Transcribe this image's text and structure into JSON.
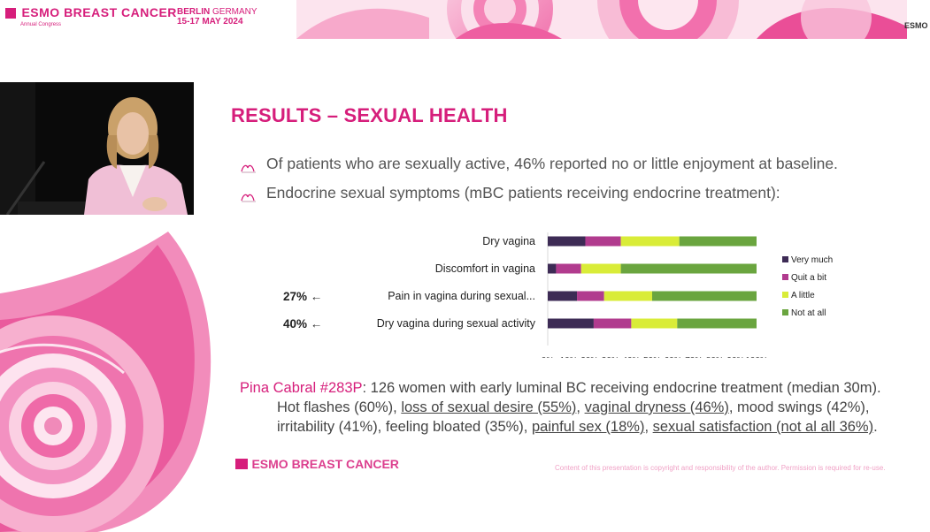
{
  "header": {
    "logo_year": "2024",
    "logo_title": "ESMO BREAST CANCER",
    "logo_subtitle": "Annual Congress",
    "city": "BERLIN",
    "country": "GERMANY",
    "dates": "15-17 MAY 2024",
    "corner_logo": "ESMO"
  },
  "slide": {
    "title": "RESULTS – SEXUAL HEALTH",
    "bullets": [
      "Of patients who are sexually active, 46% reported no or little enjoyment at baseline.",
      "Endocrine sexual symptoms (mBC patients receiving endocrine treatment):"
    ],
    "bullet_icon": "ribbon-logo-icon",
    "pina": {
      "ref": "Pina Cabral #283P",
      "line1": ": 126 women with early luminal BC receiving endocrine treatment (median 30m).",
      "l2a": "Hot flashes (60%), ",
      "l2b": "loss of sexual desire (55%)",
      "l2c": ", ",
      "l2d": "vaginal dryness (46%)",
      "l2e": ", mood swings (42%),",
      "l3a": "irritability (41%), feeling bloated (35%), ",
      "l3b": "painful sex (18%)",
      "l3c": ", ",
      "l3d": "sexual satisfaction (not al all 36%)",
      "l3e": "."
    },
    "footer_logo_year": "2024",
    "footer_logo_title": "ESMO BREAST CANCER",
    "copyright": "Content of this presentation is copyright and responsibility of the author. Permission is required for re-use."
  },
  "colors": {
    "accent": "#d61e7b",
    "very_much": "#3d2b55",
    "quite_a_bit": "#b13b8e",
    "a_little": "#d9ec38",
    "not_at_all": "#6aa53f"
  },
  "chart_data": {
    "type": "bar",
    "orientation": "horizontal",
    "stacked": true,
    "categories": [
      "Dry vagina",
      "Discomfort in vagina",
      "Pain in vagina during sexual...",
      "Dry vagina during sexual activity"
    ],
    "annotations": [
      "",
      "",
      "27%",
      "40%"
    ],
    "series": [
      {
        "name": "Very much",
        "values": [
          18,
          4,
          14,
          22
        ]
      },
      {
        "name": "Quit a bit",
        "values": [
          17,
          12,
          13,
          18
        ]
      },
      {
        "name": "A little",
        "values": [
          28,
          19,
          23,
          22
        ]
      },
      {
        "name": "Not at all",
        "values": [
          37,
          65,
          50,
          38
        ]
      }
    ],
    "xlim": [
      0,
      100
    ],
    "xticks": [
      "0%",
      "10%",
      "20%",
      "30%",
      "40%",
      "50%",
      "60%",
      "70%",
      "80%",
      "90%",
      "100%"
    ],
    "legend_position": "right"
  }
}
